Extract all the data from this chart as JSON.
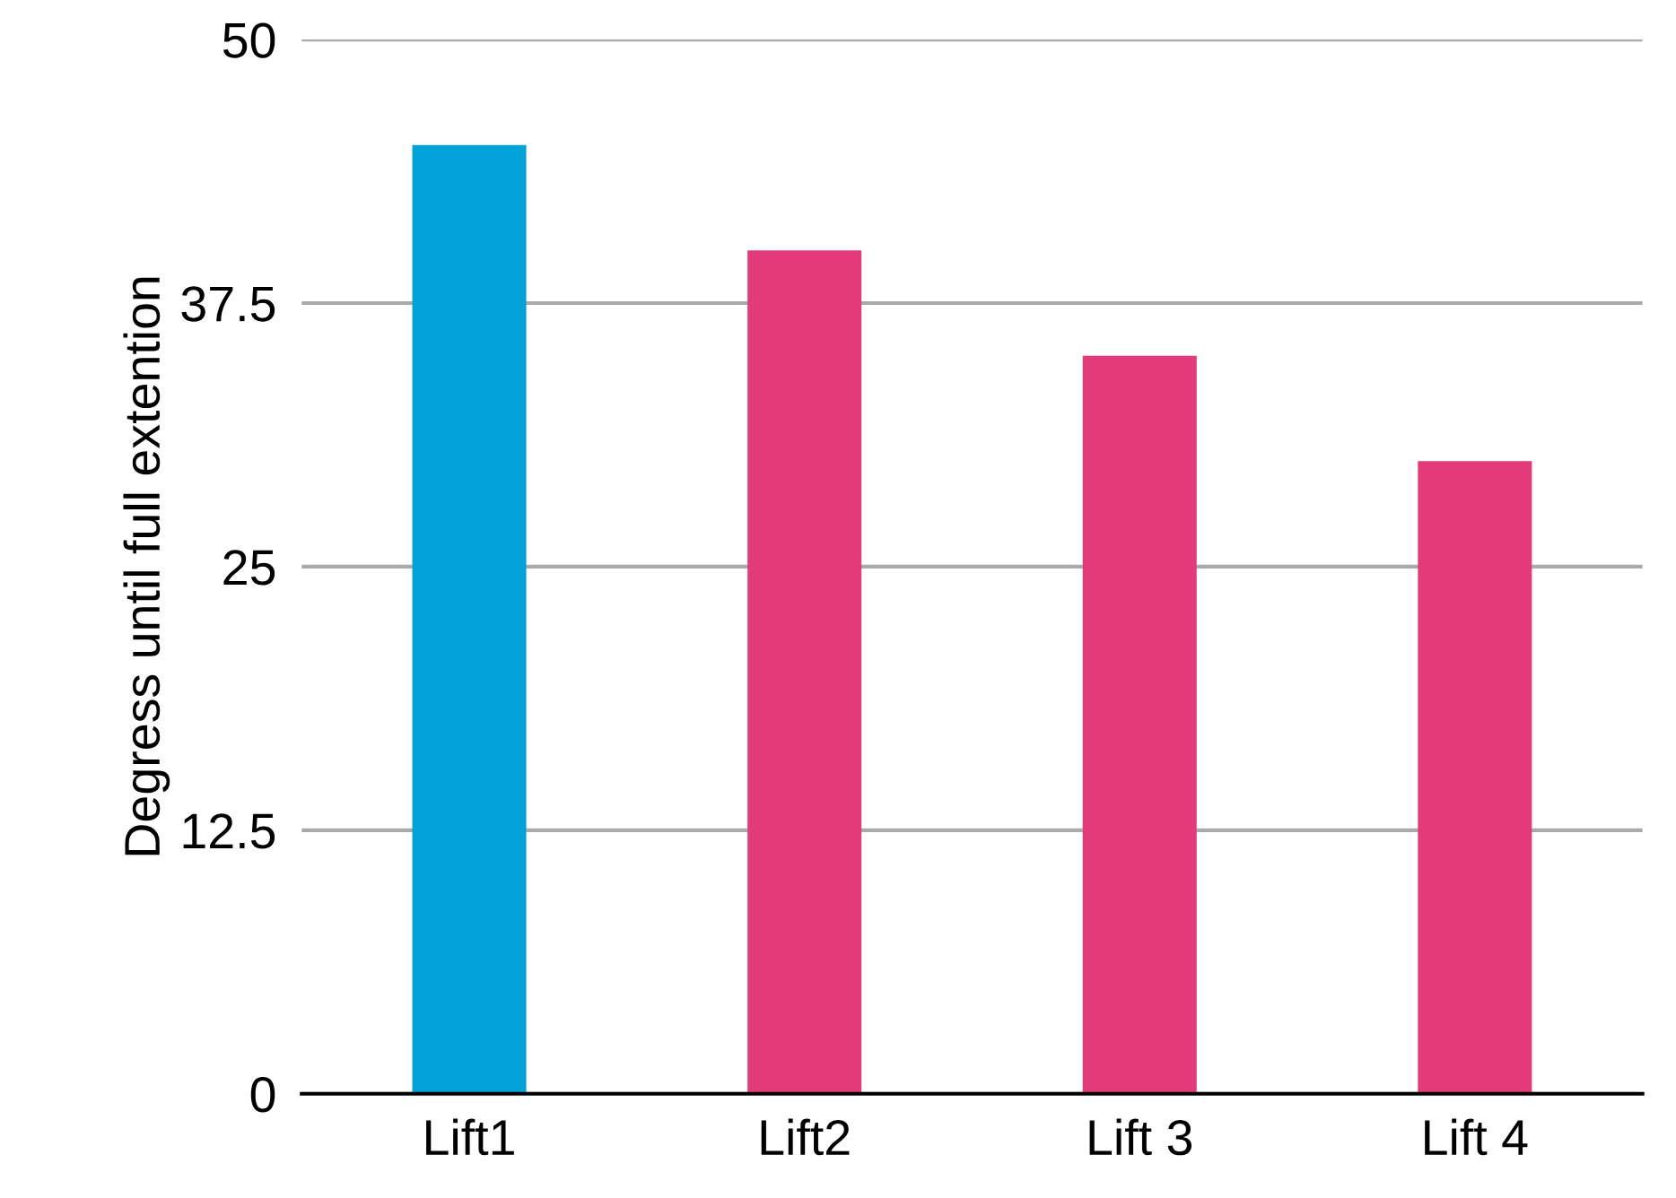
{
  "chart_data": {
    "type": "bar",
    "ylabel": "Degress until full extention",
    "categories": [
      "Lift1",
      "Lift2",
      "Lift 3",
      "Lift 4"
    ],
    "values": [
      45,
      40,
      35,
      30
    ],
    "colors": [
      "#00a2d9",
      "#e33a79",
      "#e33a79",
      "#e33a79"
    ],
    "ylim": [
      0,
      50
    ],
    "yticks": [
      0,
      12.5,
      25,
      37.5,
      50
    ],
    "grid": "y"
  }
}
